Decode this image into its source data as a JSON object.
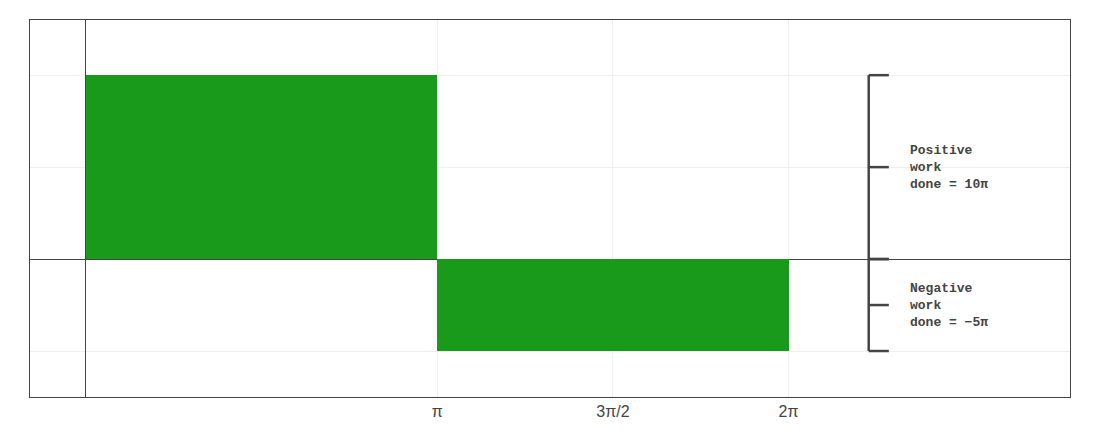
{
  "chart_data": {
    "type": "bar",
    "bins": [
      0,
      3.14159265,
      6.2831853
    ],
    "values": [
      10,
      -5
    ],
    "color": "#1a9a1a",
    "annotations": [
      "Positive\nwork\ndone = 10π",
      "Negative\nwork\ndone = −5π"
    ],
    "xlim": [
      -0.5,
      8.8
    ],
    "ylim": [
      -7.5,
      13
    ],
    "xticks": [
      {
        "value": 3.141592653589793,
        "label": "π"
      },
      {
        "value": 4.71238898038469,
        "label": "3π/2"
      },
      {
        "value": 6.283185307179586,
        "label": "2π"
      }
    ],
    "yticks": [
      -5,
      0,
      5,
      10
    ],
    "tick_labels": "x",
    "grid": true
  }
}
